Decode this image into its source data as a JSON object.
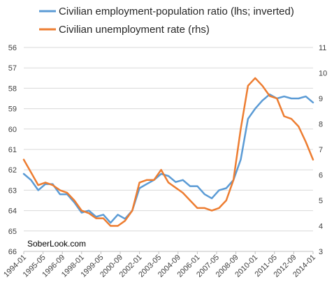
{
  "chart_data": {
    "type": "line",
    "watermark": "SoberLook.com",
    "legend_position": "top",
    "x_tick_labels": [
      "1994-01",
      "1995-05",
      "1996-09",
      "1998-01",
      "1999-05",
      "2000-09",
      "2002-01",
      "2003-05",
      "2004-09",
      "2006-01",
      "2007-05",
      "2008-09",
      "2010-01",
      "2011-05",
      "2012-09",
      "2014-01"
    ],
    "left_axis": {
      "ticks": [
        56,
        57,
        58,
        59,
        60,
        61,
        62,
        63,
        64,
        65,
        66
      ],
      "inverted": true,
      "ylim": [
        56,
        66
      ]
    },
    "right_axis": {
      "ticks": [
        3,
        4,
        5,
        6,
        7,
        8,
        9,
        10,
        11
      ],
      "ylim": [
        3,
        11
      ]
    },
    "series": [
      {
        "name": "Civilian employment-population ratio (lhs; inverted)",
        "axis": "left",
        "color": "#5b9bd5",
        "x": [
          "1994-01",
          "1994-07",
          "1995-01",
          "1995-07",
          "1996-01",
          "1996-07",
          "1997-01",
          "1997-07",
          "1998-01",
          "1998-07",
          "1999-01",
          "1999-07",
          "2000-01",
          "2000-07",
          "2001-01",
          "2001-07",
          "2002-01",
          "2002-07",
          "2003-01",
          "2003-07",
          "2004-01",
          "2004-07",
          "2005-01",
          "2005-07",
          "2006-01",
          "2006-07",
          "2007-01",
          "2007-07",
          "2008-01",
          "2008-07",
          "2009-01",
          "2009-07",
          "2010-01",
          "2010-07",
          "2011-01",
          "2011-07",
          "2012-01",
          "2012-07",
          "2013-01",
          "2013-07",
          "2014-01"
        ],
        "values": [
          62.2,
          62.5,
          63.0,
          62.7,
          62.7,
          63.2,
          63.2,
          63.6,
          64.1,
          64.0,
          64.3,
          64.2,
          64.6,
          64.2,
          64.4,
          64.0,
          62.9,
          62.7,
          62.5,
          62.2,
          62.3,
          62.6,
          62.5,
          62.8,
          62.8,
          63.2,
          63.4,
          63.0,
          62.9,
          62.5,
          61.5,
          59.5,
          59.0,
          58.6,
          58.3,
          58.5,
          58.4,
          58.5,
          58.5,
          58.4,
          58.7
        ]
      },
      {
        "name": "Civilian unemployment rate (rhs)",
        "axis": "right",
        "color": "#ed7d31",
        "x": [
          "1994-01",
          "1994-07",
          "1995-01",
          "1995-07",
          "1996-01",
          "1996-07",
          "1997-01",
          "1997-07",
          "1998-01",
          "1998-07",
          "1999-01",
          "1999-07",
          "2000-01",
          "2000-07",
          "2001-01",
          "2001-07",
          "2002-01",
          "2002-07",
          "2003-01",
          "2003-07",
          "2004-01",
          "2004-07",
          "2005-01",
          "2005-07",
          "2006-01",
          "2006-07",
          "2007-01",
          "2007-07",
          "2008-01",
          "2008-07",
          "2009-01",
          "2009-07",
          "2010-01",
          "2010-07",
          "2011-01",
          "2011-07",
          "2012-01",
          "2012-07",
          "2013-01",
          "2013-07",
          "2014-01"
        ],
        "values": [
          6.6,
          6.1,
          5.6,
          5.7,
          5.6,
          5.4,
          5.3,
          5.0,
          4.6,
          4.5,
          4.3,
          4.3,
          4.0,
          4.0,
          4.2,
          4.6,
          5.7,
          5.8,
          5.8,
          6.2,
          5.7,
          5.5,
          5.3,
          5.0,
          4.7,
          4.7,
          4.6,
          4.7,
          5.0,
          5.8,
          7.8,
          9.5,
          9.8,
          9.5,
          9.1,
          9.0,
          8.3,
          8.2,
          7.9,
          7.3,
          6.6
        ]
      }
    ]
  }
}
